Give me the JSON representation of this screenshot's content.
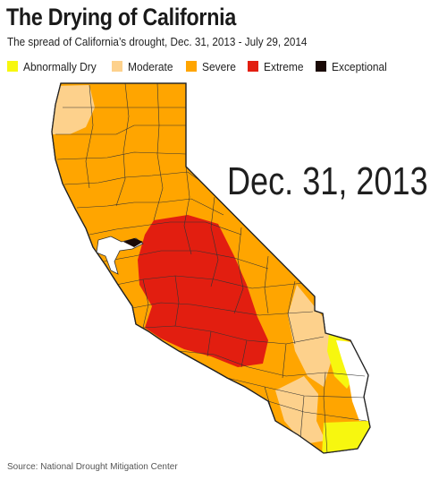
{
  "header": {
    "title": "The Drying of California",
    "subtitle": "The spread of California’s drought, Dec. 31, 2013 - July 29, 2014"
  },
  "legend": [
    {
      "label": "Abnormally Dry",
      "color": "#f7f70f"
    },
    {
      "label": "Moderate",
      "color": "#fdd18c"
    },
    {
      "label": "Severe",
      "color": "#ffa500"
    },
    {
      "label": "Extreme",
      "color": "#e21e10"
    },
    {
      "label": "Exceptional",
      "color": "#1a0a06"
    }
  ],
  "map": {
    "date_label": "Dec. 31, 2013",
    "state": "California"
  },
  "source": "Source: National Drought Mitigation Center"
}
